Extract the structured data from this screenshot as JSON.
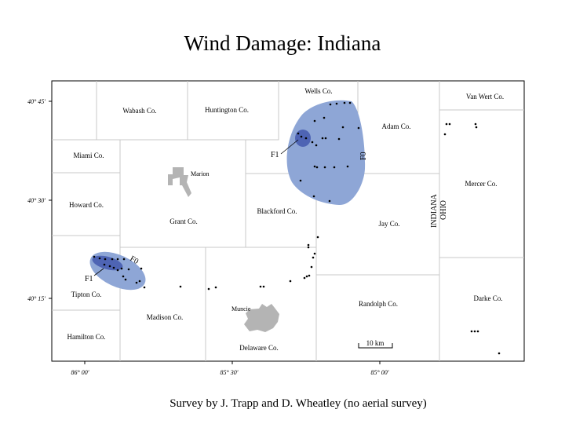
{
  "title": "Wind Damage:  Indiana",
  "caption": "Survey by J. Trapp and D. Wheatley (no aerial survey)",
  "latitudes": [
    "40° 45'",
    "40° 30'",
    "40° 15'"
  ],
  "longitudes": [
    "86° 00'",
    "85° 30'",
    "85° 00'"
  ],
  "counties": {
    "wells": "Wells Co.",
    "van_wert": "Van Wert Co.",
    "wabash": "Wabash Co.",
    "huntington": "Huntington Co.",
    "adam": "Adam Co.",
    "miami": "Miami Co.",
    "mercer": "Mercer Co.",
    "howard": "Howard Co.",
    "grant": "Grant Co.",
    "blackford": "Blackford Co.",
    "jay": "Jay Co.",
    "tipton": "Tipton Co.",
    "madison": "Madison Co.",
    "randolph": "Randolph Co.",
    "darke": "Darke Co.",
    "hamilton": "Hamilton Co.",
    "delaware": "Delaware Co."
  },
  "cities": {
    "marion": "Marion",
    "muncie": "Muncie"
  },
  "states": {
    "indiana": "INDIANA",
    "ohio": "OHIO"
  },
  "ratings": {
    "f0": "F0",
    "f1": "F1"
  },
  "scale": "10 km",
  "colors": {
    "f0_fill": "#8ea6d6",
    "f1_fill": "#4e64b4",
    "city": "#b4b4b4",
    "border": "#c8c8c8",
    "frame": "#000000"
  }
}
